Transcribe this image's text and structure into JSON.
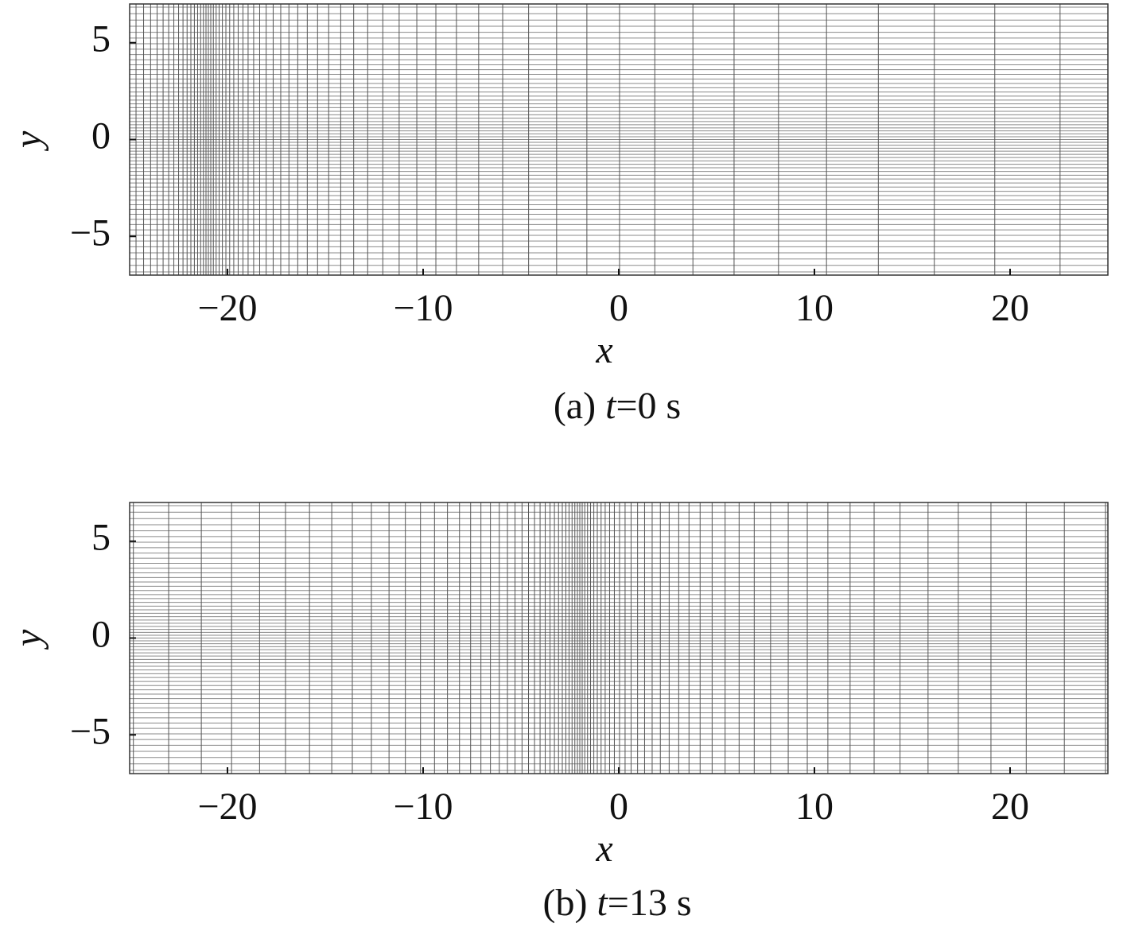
{
  "chart_data": [
    {
      "type": "mesh",
      "x_label": "x",
      "y_label": "y",
      "caption": [
        "(a) ",
        "t",
        "=0 s"
      ],
      "xlim": [
        -25,
        25
      ],
      "ylim": [
        -7,
        7
      ],
      "xticks": [
        {
          "value": -20,
          "label": "−20"
        },
        {
          "value": -10,
          "label": "−10"
        },
        0,
        10,
        20
      ],
      "yticks": [
        {
          "value": -5,
          "label": "−5"
        },
        0,
        5
      ]
    },
    {
      "type": "mesh",
      "x_label": "x",
      "y_label": "y",
      "caption": [
        "(b) ",
        "t",
        "=13 s"
      ],
      "xlim": [
        -25,
        25
      ],
      "ylim": [
        -7,
        7
      ],
      "xticks": [
        {
          "value": -20,
          "label": "−20"
        },
        {
          "value": -10,
          "label": "−10"
        },
        0,
        10,
        20
      ],
      "yticks": [
        {
          "value": -5,
          "label": "−5"
        },
        0,
        5
      ]
    }
  ]
}
